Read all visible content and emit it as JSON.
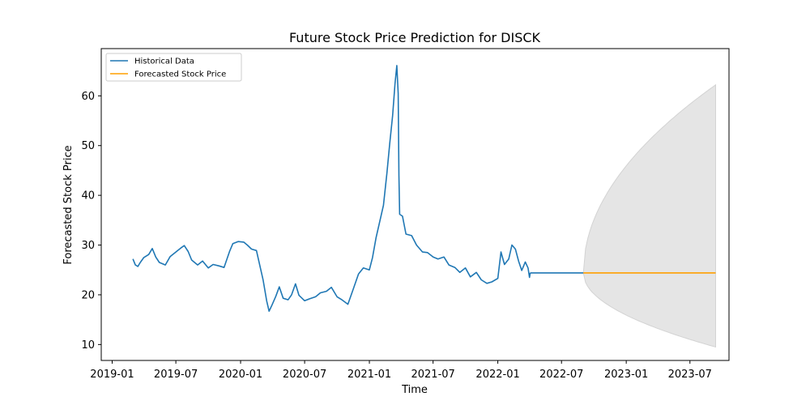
{
  "chart_data": {
    "type": "line",
    "title": "Future Stock Price Prediction for DISCK",
    "xlabel": "Time",
    "ylabel": "Forecasted Stock Price",
    "x_ticks": [
      "2019-01",
      "2019-07",
      "2020-01",
      "2020-07",
      "2021-01",
      "2021-07",
      "2022-01",
      "2022-07",
      "2023-01",
      "2023-07"
    ],
    "y_ticks": [
      10,
      20,
      30,
      40,
      50,
      60
    ],
    "xlim": [
      "2018-12-01",
      "2023-10-20"
    ],
    "ylim": [
      6.8,
      69.5
    ],
    "grid": false,
    "legend": {
      "position": "top-left",
      "entries": [
        {
          "label": "Historical Data",
          "color": "#1f77b4"
        },
        {
          "label": "Forecasted Stock Price",
          "color": "#ff9f00"
        }
      ]
    },
    "series": [
      {
        "name": "Historical Data",
        "color": "#1f77b4",
        "points": [
          [
            "2019-03-01",
            27.2
          ],
          [
            "2019-03-08",
            26.0
          ],
          [
            "2019-03-15",
            25.7
          ],
          [
            "2019-03-22",
            26.5
          ],
          [
            "2019-04-01",
            27.5
          ],
          [
            "2019-04-15",
            28.1
          ],
          [
            "2019-04-25",
            29.3
          ],
          [
            "2019-05-05",
            27.6
          ],
          [
            "2019-05-15",
            26.5
          ],
          [
            "2019-06-01",
            26.0
          ],
          [
            "2019-06-15",
            27.7
          ],
          [
            "2019-07-01",
            28.6
          ],
          [
            "2019-07-15",
            29.4
          ],
          [
            "2019-07-25",
            29.9
          ],
          [
            "2019-08-05",
            28.7
          ],
          [
            "2019-08-15",
            27.0
          ],
          [
            "2019-09-01",
            26.0
          ],
          [
            "2019-09-15",
            26.8
          ],
          [
            "2019-10-01",
            25.4
          ],
          [
            "2019-10-15",
            26.1
          ],
          [
            "2019-11-01",
            25.8
          ],
          [
            "2019-11-15",
            25.5
          ],
          [
            "2019-12-01",
            28.8
          ],
          [
            "2019-12-10",
            30.3
          ],
          [
            "2019-12-25",
            30.7
          ],
          [
            "2020-01-10",
            30.6
          ],
          [
            "2020-01-20",
            30.0
          ],
          [
            "2020-02-01",
            29.2
          ],
          [
            "2020-02-15",
            28.9
          ],
          [
            "2020-02-25",
            25.8
          ],
          [
            "2020-03-05",
            23.0
          ],
          [
            "2020-03-15",
            18.8
          ],
          [
            "2020-03-22",
            16.7
          ],
          [
            "2020-03-30",
            17.9
          ],
          [
            "2020-04-10",
            19.7
          ],
          [
            "2020-04-20",
            21.6
          ],
          [
            "2020-05-01",
            19.3
          ],
          [
            "2020-05-15",
            19.0
          ],
          [
            "2020-05-25",
            20.0
          ],
          [
            "2020-06-05",
            22.2
          ],
          [
            "2020-06-15",
            19.9
          ],
          [
            "2020-07-01",
            18.8
          ],
          [
            "2020-07-15",
            19.2
          ],
          [
            "2020-08-01",
            19.6
          ],
          [
            "2020-08-15",
            20.4
          ],
          [
            "2020-09-01",
            20.7
          ],
          [
            "2020-09-15",
            21.5
          ],
          [
            "2020-10-01",
            19.6
          ],
          [
            "2020-10-15",
            19.0
          ],
          [
            "2020-11-01",
            18.1
          ],
          [
            "2020-11-15",
            20.9
          ],
          [
            "2020-12-01",
            24.2
          ],
          [
            "2020-12-15",
            25.4
          ],
          [
            "2021-01-01",
            25.0
          ],
          [
            "2021-01-10",
            27.5
          ],
          [
            "2021-01-20",
            31.5
          ],
          [
            "2021-02-01",
            35.2
          ],
          [
            "2021-02-10",
            38.0
          ],
          [
            "2021-02-20",
            44.5
          ],
          [
            "2021-02-28",
            50.5
          ],
          [
            "2021-03-08",
            56.0
          ],
          [
            "2021-03-15",
            62.5
          ],
          [
            "2021-03-20",
            66.1
          ],
          [
            "2021-03-24",
            60.5
          ],
          [
            "2021-03-26",
            44.0
          ],
          [
            "2021-03-28",
            36.2
          ],
          [
            "2021-04-05",
            35.8
          ],
          [
            "2021-04-15",
            32.2
          ],
          [
            "2021-05-01",
            31.9
          ],
          [
            "2021-05-15",
            30.0
          ],
          [
            "2021-06-01",
            28.6
          ],
          [
            "2021-06-15",
            28.5
          ],
          [
            "2021-07-01",
            27.6
          ],
          [
            "2021-07-15",
            27.2
          ],
          [
            "2021-08-01",
            27.6
          ],
          [
            "2021-08-15",
            26.0
          ],
          [
            "2021-09-01",
            25.5
          ],
          [
            "2021-09-15",
            24.5
          ],
          [
            "2021-10-01",
            25.4
          ],
          [
            "2021-10-15",
            23.6
          ],
          [
            "2021-11-01",
            24.5
          ],
          [
            "2021-11-15",
            23.0
          ],
          [
            "2021-12-01",
            22.3
          ],
          [
            "2021-12-15",
            22.6
          ],
          [
            "2022-01-01",
            23.3
          ],
          [
            "2022-01-10",
            28.6
          ],
          [
            "2022-01-20",
            26.1
          ],
          [
            "2022-02-01",
            27.2
          ],
          [
            "2022-02-10",
            30.0
          ],
          [
            "2022-02-20",
            29.2
          ],
          [
            "2022-03-01",
            26.8
          ],
          [
            "2022-03-10",
            24.9
          ],
          [
            "2022-03-20",
            26.6
          ],
          [
            "2022-03-28",
            25.4
          ],
          [
            "2022-04-01",
            23.5
          ],
          [
            "2022-04-03",
            24.4
          ]
        ]
      },
      {
        "name": "",
        "color": "#1f77b4",
        "points": [
          [
            "2022-04-03",
            24.4
          ],
          [
            "2022-09-01",
            24.4
          ]
        ]
      },
      {
        "name": "Forecasted Stock Price",
        "color": "#ff9f00",
        "points": [
          [
            "2022-09-01",
            24.4
          ],
          [
            "2023-09-12",
            24.4
          ]
        ]
      }
    ],
    "confidence_band": {
      "color": "#d3d3d3",
      "start": "2022-09-01",
      "end": "2023-09-12",
      "center": 24.4,
      "upper_end": 62.2,
      "lower_end": 9.5
    }
  }
}
